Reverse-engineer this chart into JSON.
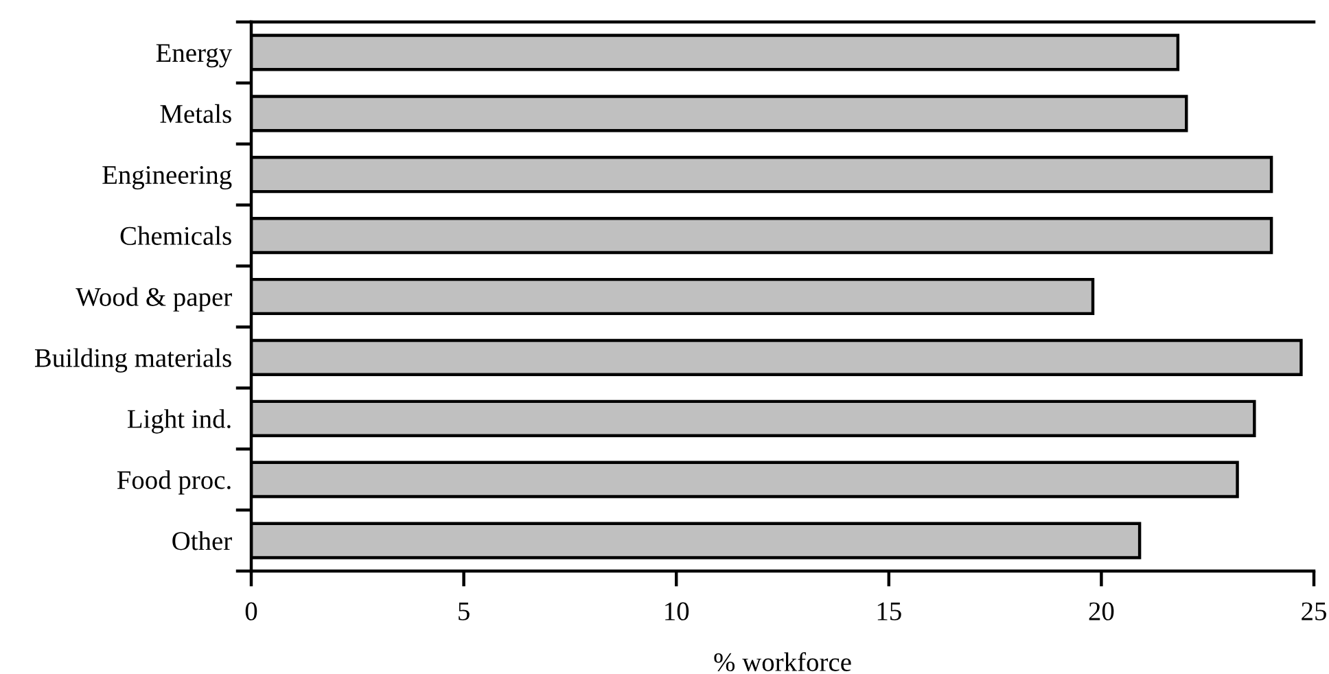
{
  "chart_data": {
    "type": "bar",
    "orientation": "horizontal",
    "categories": [
      "Energy",
      "Metals",
      "Engineering",
      "Chemicals",
      "Wood & paper",
      "Building materials",
      "Light ind.",
      "Food proc.",
      "Other"
    ],
    "values": [
      21.8,
      22.0,
      24.0,
      24.0,
      19.8,
      24.7,
      23.6,
      23.2,
      20.9
    ],
    "color": "#c0c0c0",
    "xlabel": "% workforce",
    "xlim": [
      0,
      25
    ],
    "xticks": [
      0,
      5,
      10,
      15,
      20,
      25
    ]
  }
}
